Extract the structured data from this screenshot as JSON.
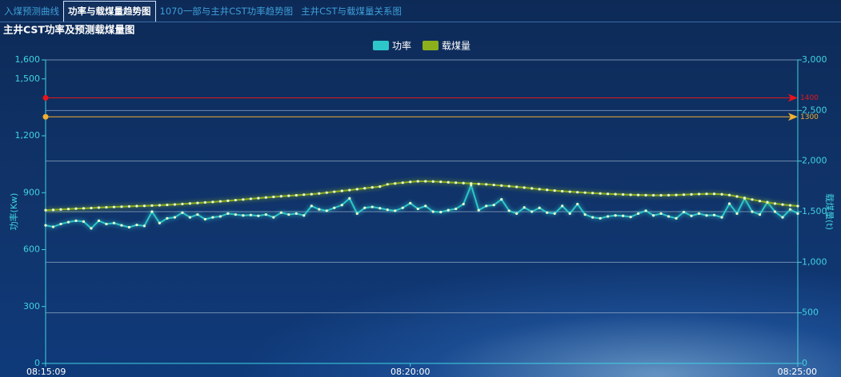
{
  "tabs": [
    "入煤预测曲线",
    "功率与载煤量趋势图",
    "1070一部与主井CST功率趋势图",
    "主井CST与载煤量关系图"
  ],
  "chart_data": {
    "type": "line",
    "title": "主井CST功率及预测载煤量图",
    "y_label": "功率(Kw)",
    "y2_label": "载煤量(t)",
    "categories": [
      "08:15:09",
      null,
      null,
      null,
      null,
      null,
      null,
      null,
      null,
      null,
      null,
      null,
      null,
      null,
      null,
      null,
      null,
      null,
      null,
      null,
      null,
      null,
      null,
      null,
      null,
      null,
      null,
      null,
      null,
      null,
      null,
      null,
      null,
      null,
      null,
      null,
      null,
      null,
      null,
      null,
      null,
      null,
      null,
      null,
      null,
      null,
      null,
      null,
      "08:20:00",
      null,
      null,
      null,
      null,
      null,
      null,
      null,
      null,
      null,
      null,
      null,
      null,
      null,
      null,
      null,
      null,
      null,
      null,
      null,
      null,
      null,
      null,
      null,
      null,
      null,
      null,
      null,
      null,
      null,
      null,
      null,
      null,
      null,
      null,
      null,
      null,
      null,
      null,
      null,
      null,
      null,
      null,
      null,
      null,
      null,
      null,
      null,
      null,
      null,
      null,
      "08:25:00"
    ],
    "series": [
      {
        "name": "功率",
        "color": "#2ec7c9",
        "axis": "y",
        "values": [
          728,
          720,
          735,
          745,
          752,
          748,
          712,
          752,
          735,
          740,
          728,
          718,
          730,
          725,
          800,
          740,
          765,
          770,
          795,
          770,
          785,
          760,
          770,
          775,
          790,
          785,
          780,
          782,
          778,
          785,
          770,
          795,
          785,
          790,
          780,
          830,
          812,
          805,
          820,
          835,
          870,
          790,
          820,
          825,
          818,
          810,
          805,
          820,
          845,
          815,
          830,
          800,
          798,
          808,
          815,
          840,
          940,
          808,
          830,
          835,
          865,
          805,
          790,
          822,
          800,
          820,
          795,
          790,
          830,
          790,
          840,
          785,
          770,
          765,
          775,
          780,
          778,
          772,
          790,
          805,
          780,
          790,
          775,
          765,
          798,
          778,
          790,
          780,
          782,
          770,
          842,
          790,
          870,
          800,
          785,
          850,
          800,
          770,
          812,
          790
        ]
      },
      {
        "name": "载煤量",
        "color": "#8cb01c",
        "axis": "y2",
        "values": [
          1515,
          1518,
          1522,
          1526,
          1530,
          1533,
          1536,
          1540,
          1543,
          1546,
          1549,
          1552,
          1555,
          1557,
          1560,
          1563,
          1567,
          1571,
          1576,
          1581,
          1586,
          1591,
          1596,
          1602,
          1608,
          1614,
          1620,
          1627,
          1633,
          1640,
          1646,
          1652,
          1657,
          1662,
          1668,
          1673,
          1680,
          1688,
          1697,
          1705,
          1713,
          1722,
          1731,
          1740,
          1748,
          1770,
          1778,
          1786,
          1794,
          1800,
          1800,
          1798,
          1795,
          1790,
          1786,
          1782,
          1778,
          1774,
          1770,
          1764,
          1758,
          1752,
          1745,
          1738,
          1730,
          1722,
          1715,
          1708,
          1702,
          1697,
          1692,
          1688,
          1684,
          1680,
          1676,
          1673,
          1670,
          1667,
          1665,
          1663,
          1662,
          1662,
          1663,
          1665,
          1668,
          1671,
          1674,
          1676,
          1676,
          1672,
          1664,
          1650,
          1635,
          1620,
          1605,
          1592,
          1580,
          1570,
          1562,
          1555
        ]
      }
    ],
    "ylim": [
      0,
      1600
    ],
    "yticks": [
      0,
      300,
      600,
      900,
      {
        "value": 1200,
        "label": "1,200"
      },
      {
        "value": 1500,
        "label": "1,500"
      },
      {
        "value": 1600,
        "label": "1,600"
      }
    ],
    "y2lim": [
      0,
      3000
    ],
    "y2ticks": [
      0,
      500,
      {
        "value": 1000,
        "label": "1,000"
      },
      {
        "value": 1500,
        "label": "1,500"
      },
      {
        "value": 2000,
        "label": "2,000"
      },
      {
        "value": 2500,
        "label": "2,500"
      },
      {
        "value": 3000,
        "label": "3,000"
      }
    ],
    "grid": "y2",
    "legend": "top",
    "mark_lines": [
      {
        "value": 1400,
        "color": "#e8141b"
      },
      {
        "value": 1300,
        "color": "#f0b030"
      }
    ]
  }
}
